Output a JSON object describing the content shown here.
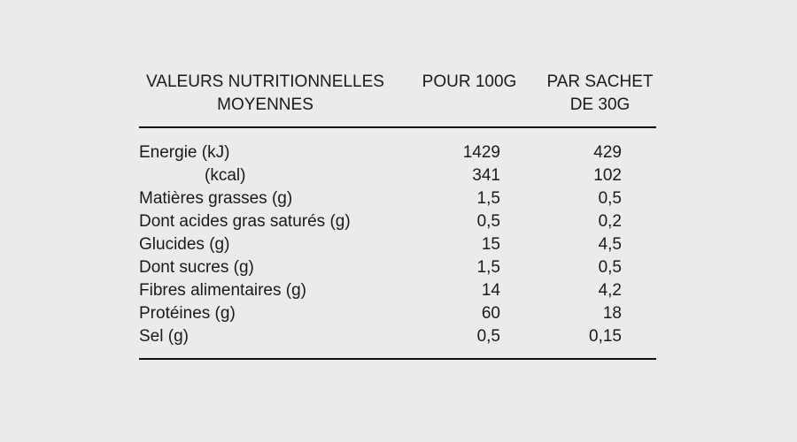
{
  "colors": {
    "background": "#ebebeb",
    "text": "#1a1a1a",
    "rule": "#111111"
  },
  "table": {
    "headers": {
      "label": "VALEURS NUTRITIONNELLES MOYENNES",
      "per_100g": "POUR 100G",
      "per_sachet": "PAR SACHET DE 30G"
    },
    "rows": [
      {
        "label": "Energie (kJ)",
        "per_100g": "1429",
        "per_sachet": "429"
      },
      {
        "label": "(kcal)",
        "per_100g": "341",
        "per_sachet": "102"
      },
      {
        "label": "Matières grasses (g)",
        "per_100g": "1,5",
        "per_sachet": "0,5"
      },
      {
        "label": "Dont acides gras saturés (g)",
        "per_100g": "0,5",
        "per_sachet": "0,2"
      },
      {
        "label": "Glucides (g)",
        "per_100g": "15",
        "per_sachet": "4,5"
      },
      {
        "label": "Dont sucres (g)",
        "per_100g": "1,5",
        "per_sachet": "0,5"
      },
      {
        "label": "Fibres alimentaires (g)",
        "per_100g": "14",
        "per_sachet": "4,2"
      },
      {
        "label": "Protéines (g)",
        "per_100g": "60",
        "per_sachet": "18"
      },
      {
        "label": "Sel (g)",
        "per_100g": "0,5",
        "per_sachet": "0,15"
      }
    ]
  }
}
